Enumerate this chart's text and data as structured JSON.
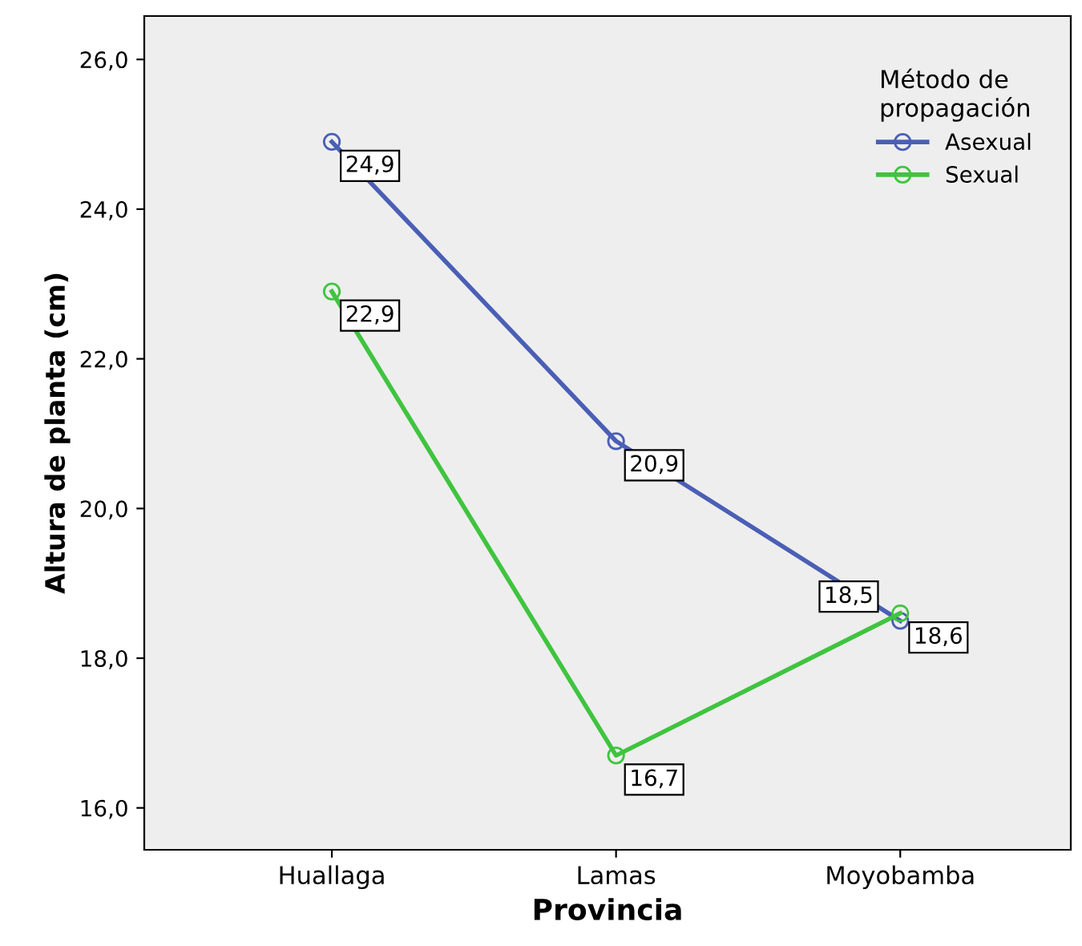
{
  "chart_data": {
    "type": "line",
    "xlabel": "Provincia",
    "ylabel": "Altura de planta (cm)",
    "legend_title": "Método de\npropagación",
    "categories": [
      "Huallaga",
      "Lamas",
      "Moyobamba"
    ],
    "series": [
      {
        "name": "Asexual",
        "color": "#4a5fb5",
        "values": [
          24.9,
          20.9,
          18.5
        ],
        "value_labels": [
          "24,9",
          "20,9",
          "18,5"
        ]
      },
      {
        "name": "Sexual",
        "color": "#3fc43f",
        "values": [
          22.9,
          16.7,
          18.6
        ],
        "value_labels": [
          "22,9",
          "16,7",
          "18,6"
        ]
      }
    ],
    "ylim": [
      15.44,
      26.58
    ],
    "yticks": [
      {
        "value": 16,
        "label": "16,0"
      },
      {
        "value": 18,
        "label": "18,0"
      },
      {
        "value": 20,
        "label": "20,0"
      },
      {
        "value": 22,
        "label": "22,0"
      },
      {
        "value": 24,
        "label": "24,0"
      },
      {
        "value": 26,
        "label": "26,0"
      }
    ],
    "marker": "circle",
    "line_style": "solid",
    "grid": false,
    "legend": "top right"
  }
}
